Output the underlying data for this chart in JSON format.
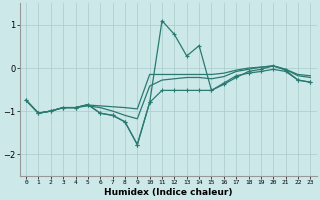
{
  "xlabel": "Humidex (Indice chaleur)",
  "x": [
    0,
    1,
    2,
    3,
    4,
    5,
    6,
    7,
    8,
    9,
    10,
    11,
    12,
    13,
    14,
    15,
    16,
    17,
    18,
    19,
    20,
    21,
    22,
    23
  ],
  "line1": [
    -0.75,
    -1.05,
    -1.0,
    -0.92,
    -0.92,
    -0.85,
    -1.05,
    -1.1,
    -1.25,
    -1.78,
    -0.8,
    1.1,
    0.78,
    0.28,
    0.52,
    -0.52,
    -0.38,
    -0.22,
    -0.08,
    -0.03,
    0.05,
    -0.05,
    -0.28,
    -0.33
  ],
  "line2": [
    -0.75,
    -1.05,
    -1.0,
    -0.92,
    -0.92,
    -0.85,
    -1.05,
    -1.1,
    -1.25,
    -1.78,
    -0.8,
    -0.52,
    -0.52,
    -0.52,
    -0.52,
    -0.52,
    -0.35,
    -0.18,
    -0.12,
    -0.08,
    -0.03,
    -0.08,
    -0.28,
    -0.33
  ],
  "line3": [
    -0.75,
    -1.05,
    -1.0,
    -0.92,
    -0.92,
    -0.88,
    -0.92,
    -1.0,
    -1.1,
    -1.18,
    -0.42,
    -0.28,
    -0.25,
    -0.22,
    -0.22,
    -0.25,
    -0.2,
    -0.08,
    -0.03,
    0.02,
    0.05,
    -0.03,
    -0.18,
    -0.22
  ],
  "line4": [
    -0.75,
    -1.05,
    -1.0,
    -0.92,
    -0.92,
    -0.86,
    -0.88,
    -0.9,
    -0.92,
    -0.95,
    -0.15,
    -0.15,
    -0.15,
    -0.15,
    -0.15,
    -0.15,
    -0.12,
    -0.05,
    0.0,
    0.02,
    0.05,
    -0.03,
    -0.15,
    -0.18
  ],
  "line_color": "#2a7a72",
  "bg_color": "#cce8e8",
  "grid_color": "#aacccc",
  "ylim": [
    -2.5,
    1.5
  ],
  "yticks": [
    -2,
    -1,
    0,
    1
  ],
  "marker": "+",
  "figwidth": 3.2,
  "figheight": 2.0,
  "dpi": 100
}
